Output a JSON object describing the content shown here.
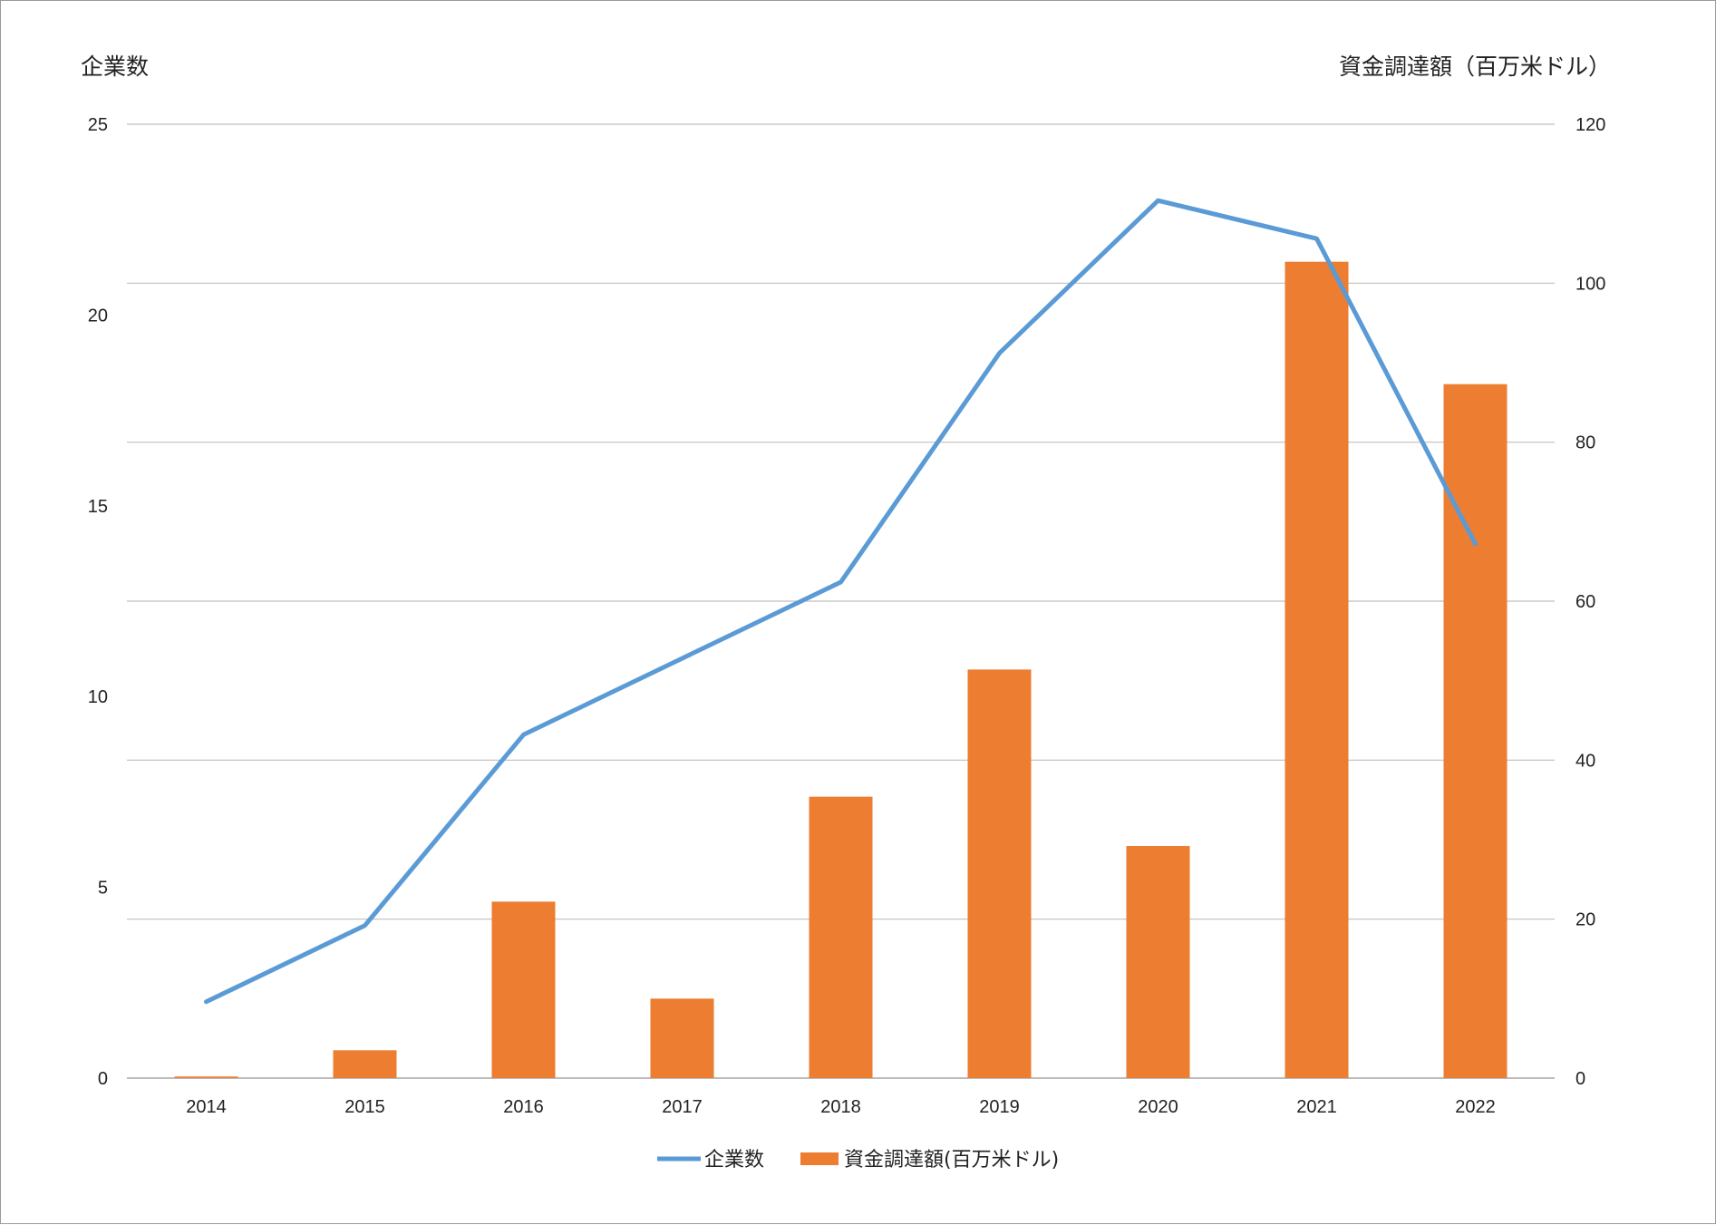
{
  "chart_data": {
    "type": "bar",
    "title": "",
    "categories": [
      "2014",
      "2015",
      "2016",
      "2017",
      "2018",
      "2019",
      "2020",
      "2021",
      "2022"
    ],
    "series": [
      {
        "name": "資金調達額(百万米ドル)",
        "type": "bar",
        "axis": "right",
        "color": "#ed7d31",
        "values": [
          0.2,
          3.5,
          22.2,
          10.0,
          35.4,
          51.4,
          29.2,
          102.7,
          87.3
        ]
      },
      {
        "name": "企業数",
        "type": "line",
        "axis": "left",
        "color": "#5b9bd5",
        "values": [
          2,
          4,
          9,
          11,
          13,
          19,
          23,
          22,
          14
        ]
      }
    ],
    "y_left": {
      "label": "企業数",
      "lim": [
        0,
        25
      ],
      "ticks": [
        "0",
        "5",
        "10",
        "15",
        "20",
        "25"
      ]
    },
    "y_right": {
      "label": "資金調達額（百万米ドル）",
      "lim": [
        0,
        120
      ],
      "ticks": [
        "0",
        "20",
        "40",
        "60",
        "80",
        "100",
        "120"
      ]
    },
    "grid": true,
    "legend": {
      "position": "bottom",
      "entries": [
        "企業数",
        "資金調達額(百万米ドル)"
      ]
    }
  }
}
